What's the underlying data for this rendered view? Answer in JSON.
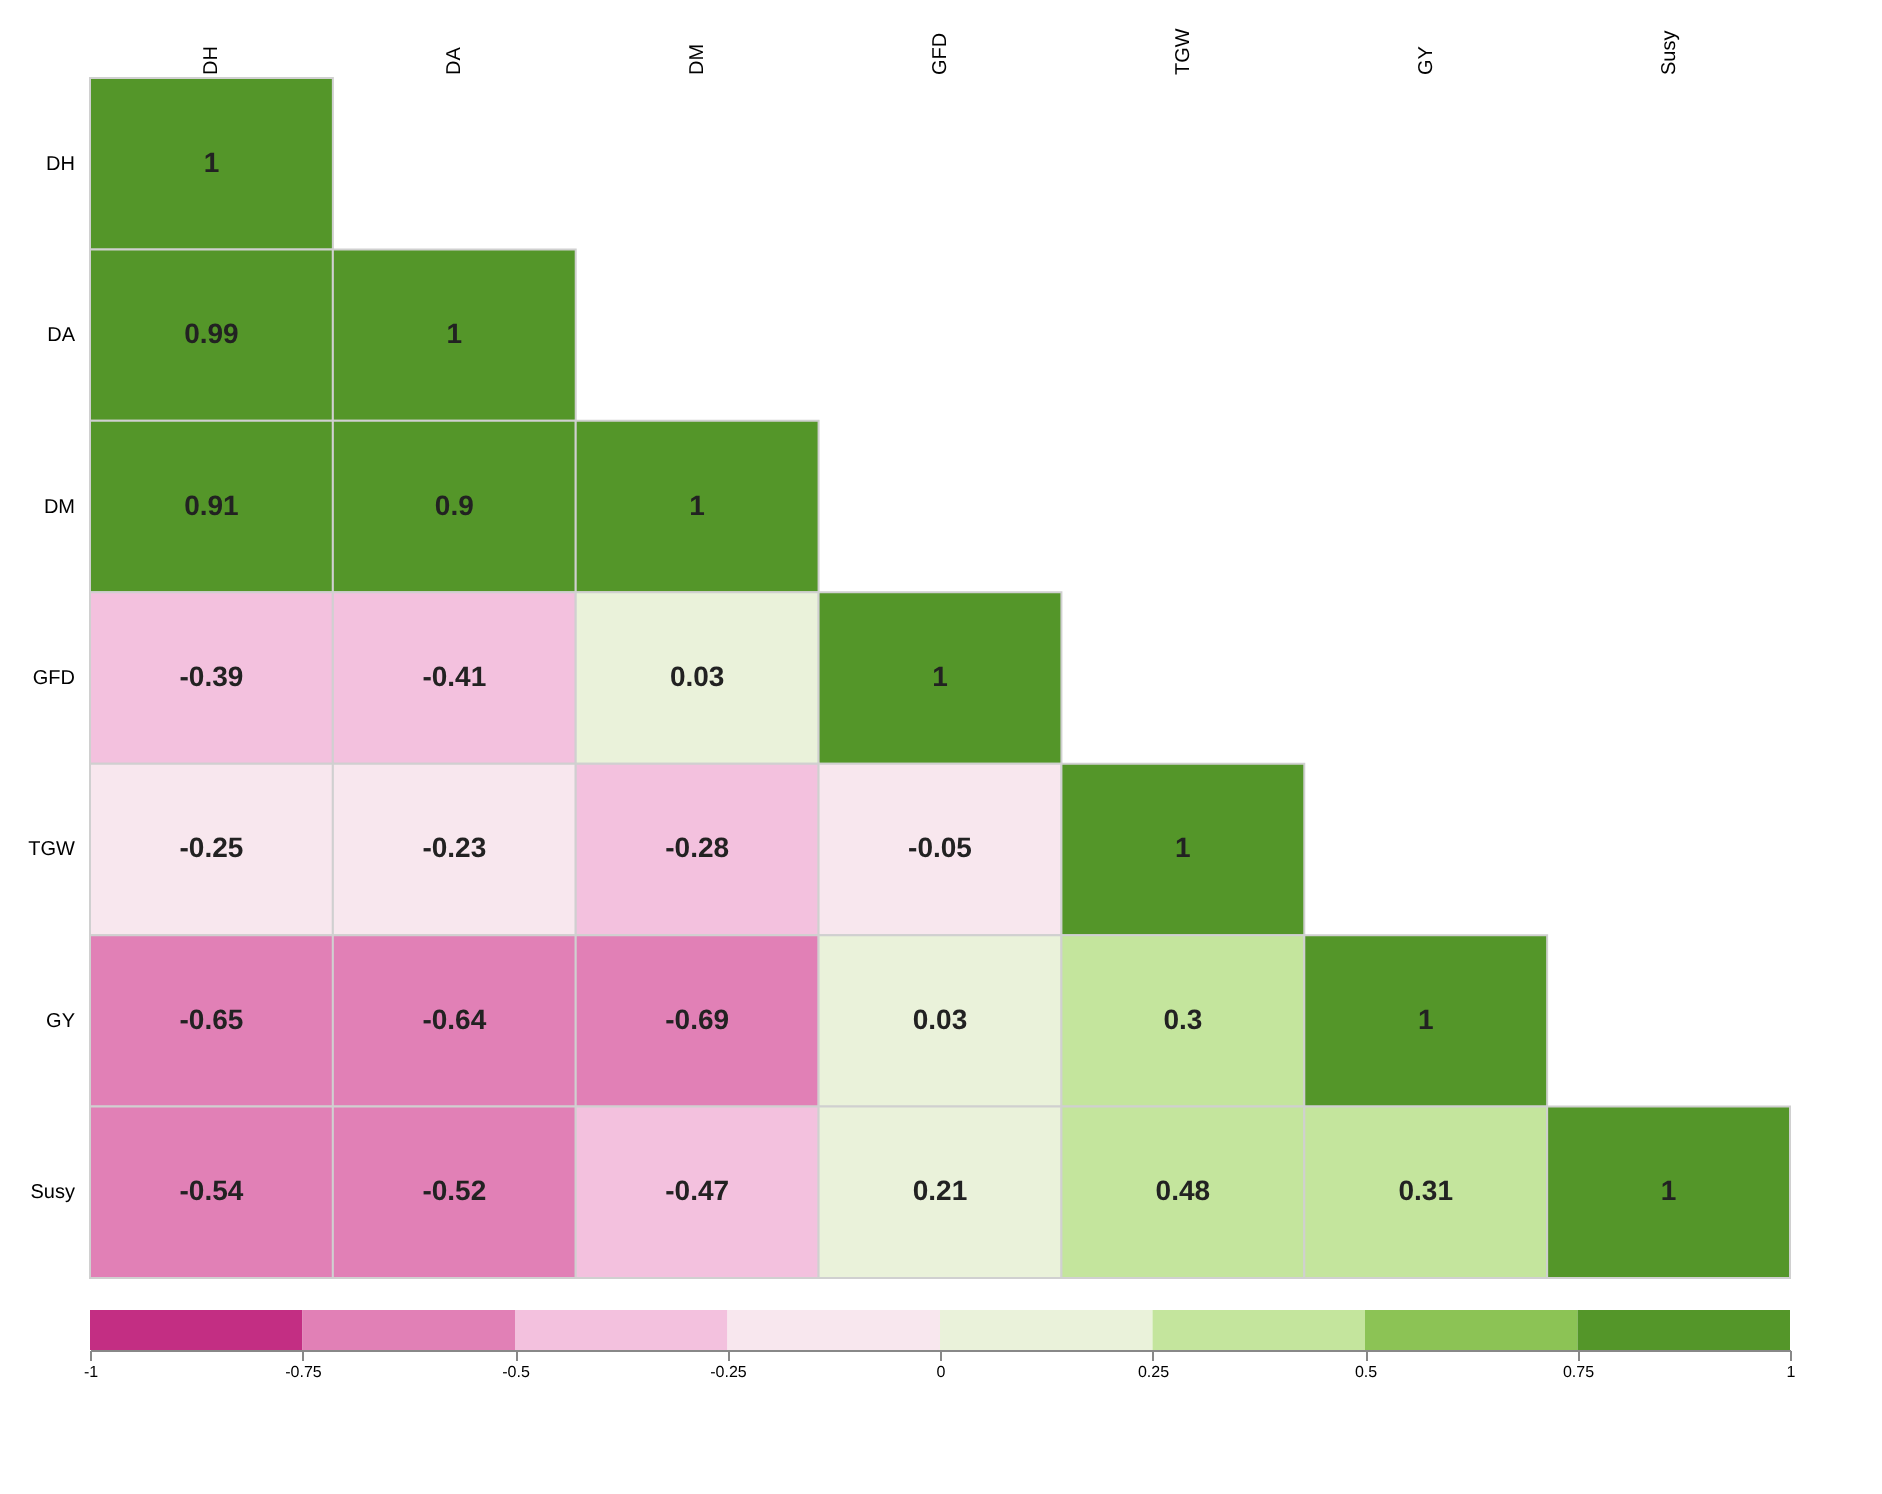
{
  "chart_data": {
    "type": "heatmap",
    "categories": [
      "DH",
      "DA",
      "DM",
      "GFD",
      "TGW",
      "GY",
      "Susy"
    ],
    "y_categories": [
      "DH",
      "DA",
      "DM",
      "GFD",
      "TGW",
      "GY",
      "Susy"
    ],
    "cells": [
      [
        1,
        null,
        null,
        null,
        null,
        null,
        null
      ],
      [
        0.99,
        1,
        null,
        null,
        null,
        null,
        null
      ],
      [
        0.91,
        0.9,
        1,
        null,
        null,
        null,
        null
      ],
      [
        -0.39,
        -0.41,
        0.03,
        1,
        null,
        null,
        null
      ],
      [
        -0.25,
        -0.23,
        -0.28,
        -0.05,
        1,
        null,
        null
      ],
      [
        -0.65,
        -0.64,
        -0.69,
        0.03,
        0.3,
        1,
        null
      ],
      [
        -0.54,
        -0.52,
        -0.47,
        0.21,
        0.48,
        0.31,
        1
      ]
    ],
    "data_labels": true,
    "clim": [
      -1,
      1
    ],
    "cticks": [
      -1,
      -0.75,
      -0.5,
      -0.25,
      0,
      0.25,
      0.5,
      0.75,
      1
    ]
  }
}
